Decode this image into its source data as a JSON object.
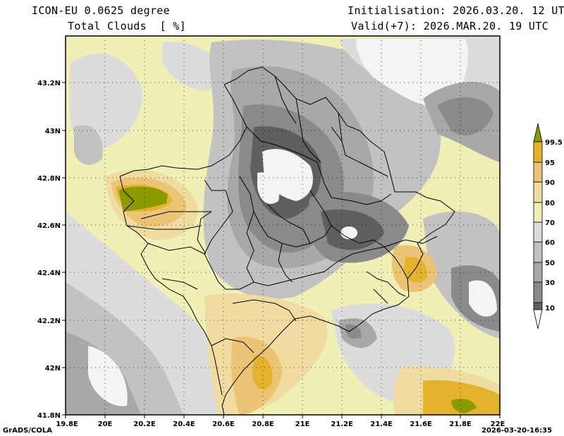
{
  "header": {
    "model": "ICON-EU 0.0625 degree",
    "field": "Total Clouds  [ %]",
    "init": "Initialisation: 2026.03.20. 12 UTC",
    "valid": "Valid(+7): 2026.MAR.20. 19 UTC"
  },
  "map": {
    "lat_labels": [
      "43.2N",
      "43N",
      "42.8N",
      "42.6N",
      "42.4N",
      "42.2N",
      "42N",
      "41.8N"
    ],
    "lon_labels": [
      "19.8E",
      "20E",
      "20.2E",
      "20.4E",
      "20.6E",
      "20.8E",
      "21E",
      "21.2E",
      "21.4E",
      "21.6E",
      "21.8E",
      "22E"
    ]
  },
  "legend": {
    "labels": [
      "99.5",
      "95",
      "90",
      "80",
      "70",
      "60",
      "50",
      "30",
      "10"
    ],
    "colors": {
      "c10": "#5f5f5f",
      "c30": "#8a8a8a",
      "c50": "#a8a8a8",
      "c60": "#c2c2c2",
      "c70": "#dcdcdc",
      "c80": "#f0efb5",
      "c90": "#f0dca0",
      "c95": "#ecc476",
      "c995": "#e3b32e",
      "top": "#8a9a00",
      "low": "#ffffff"
    }
  },
  "footer": {
    "left": "GrADS/COLA",
    "right": "2026-03-20-16:35"
  }
}
